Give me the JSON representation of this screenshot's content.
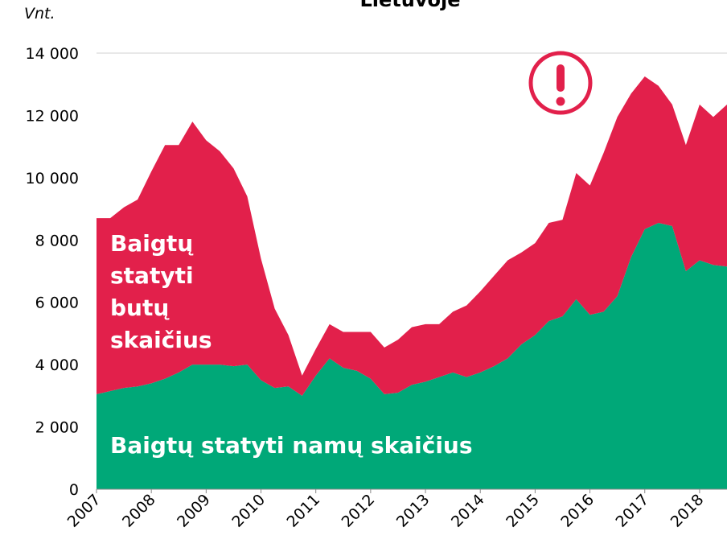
{
  "chart_data": {
    "type": "stacked_area",
    "title": "Lietuvoje",
    "y_label": "Vnt.",
    "x": [
      2007,
      2007.25,
      2007.5,
      2007.75,
      2008,
      2008.25,
      2008.5,
      2008.75,
      2009,
      2009.25,
      2009.5,
      2009.75,
      2010,
      2010.25,
      2010.5,
      2010.75,
      2011,
      2011.25,
      2011.5,
      2011.75,
      2012,
      2012.25,
      2012.5,
      2012.75,
      2013,
      2013.25,
      2013.5,
      2013.75,
      2014,
      2014.25,
      2014.5,
      2014.75,
      2015,
      2015.25,
      2015.5,
      2015.75,
      2016,
      2016.25,
      2016.5,
      2016.75,
      2017,
      2017.25,
      2017.5,
      2017.75,
      2018,
      2018.25,
      2018.5
    ],
    "series": [
      {
        "name": "Baigtų statyti namų skaičius",
        "color": "#00a878",
        "values": [
          3050,
          3150,
          3250,
          3300,
          3400,
          3550,
          3750,
          4000,
          4000,
          4000,
          3950,
          4000,
          3500,
          3250,
          3300,
          3000,
          3650,
          4200,
          3900,
          3800,
          3550,
          3050,
          3100,
          3350,
          3450,
          3600,
          3750,
          3600,
          3750,
          3950,
          4200,
          4650,
          4950,
          5400,
          5550,
          6100,
          5600,
          5700,
          6200,
          7450,
          8350,
          8550,
          8450,
          7000,
          7350,
          7200,
          7150
        ]
      },
      {
        "name": "Baigtų statyti butų skaičius",
        "color": "#e2204b",
        "values": [
          5650,
          5550,
          5800,
          6000,
          6800,
          7500,
          7300,
          7800,
          7200,
          6850,
          6350,
          5400,
          3900,
          2550,
          1650,
          650,
          850,
          1100,
          1150,
          1250,
          1500,
          1500,
          1700,
          1850,
          1850,
          1700,
          1950,
          2300,
          2600,
          2900,
          3150,
          2950,
          2950,
          3150,
          3100,
          4050,
          4150,
          5100,
          5750,
          5250,
          4900,
          4400,
          3900,
          4050,
          5000,
          4750,
          5200
        ]
      }
    ],
    "xlim": [
      2007,
      2018.5
    ],
    "xticks": [
      2007,
      2008,
      2009,
      2010,
      2011,
      2012,
      2013,
      2014,
      2015,
      2016,
      2017,
      2018
    ],
    "ylim": [
      0,
      14000
    ],
    "yticks": [
      0,
      {
        "value": 2000,
        "label": "2 000"
      },
      {
        "value": 4000,
        "label": "4 000"
      },
      {
        "value": 6000,
        "label": "6 000"
      },
      {
        "value": 8000,
        "label": "8 000"
      },
      {
        "value": 10000,
        "label": "10 000"
      },
      {
        "value": 12000,
        "label": "12 000"
      },
      {
        "value": 14000,
        "label": "14 000"
      }
    ]
  }
}
